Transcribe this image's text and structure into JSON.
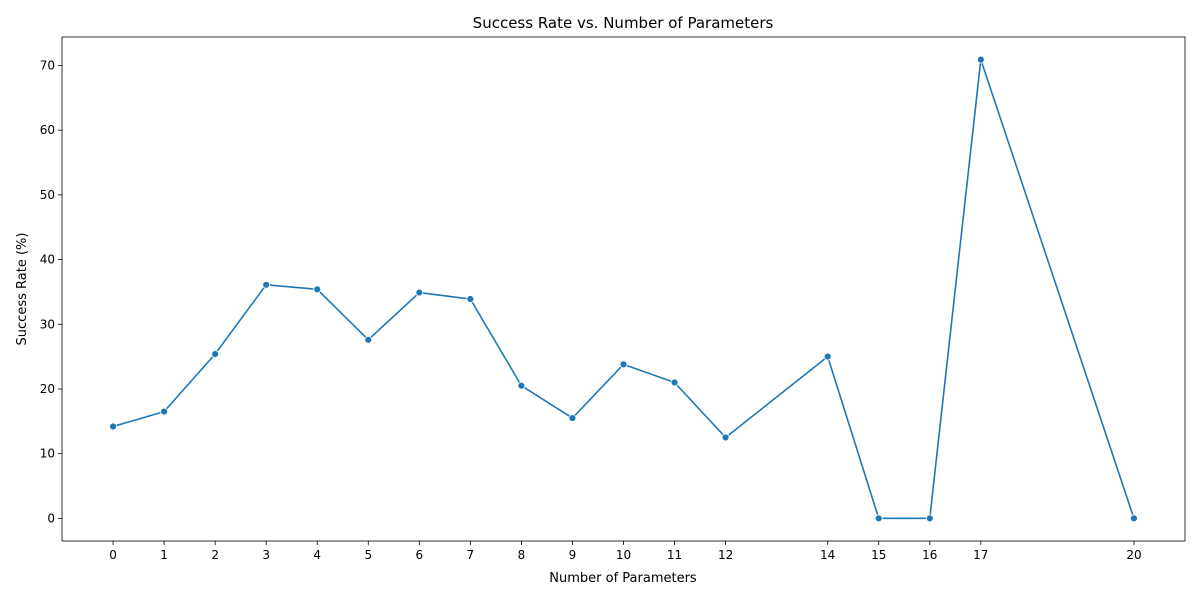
{
  "chart_data": {
    "type": "line",
    "title": "Success Rate vs. Number of Parameters",
    "xlabel": "Number of Parameters",
    "ylabel": "Success Rate (%)",
    "x": [
      0,
      1,
      2,
      3,
      4,
      5,
      6,
      7,
      8,
      9,
      10,
      11,
      12,
      14,
      15,
      16,
      17,
      20
    ],
    "series": [
      {
        "values": [
          14.2,
          16.5,
          25.4,
          36.1,
          35.4,
          27.6,
          34.9,
          33.9,
          20.5,
          15.5,
          23.8,
          21.0,
          12.5,
          25.0,
          0.0,
          0.0,
          70.9,
          0.0
        ],
        "color": "#1f77b4",
        "marker": "circle"
      }
    ],
    "xticks": [
      0,
      1,
      2,
      3,
      4,
      5,
      6,
      7,
      8,
      9,
      10,
      11,
      12,
      14,
      15,
      16,
      17,
      20
    ],
    "yticks": [
      0,
      10,
      20,
      30,
      40,
      50,
      60,
      70
    ],
    "xlim": [
      -1,
      21
    ],
    "ylim": [
      -3.5,
      74.4
    ],
    "grid": false,
    "legend": "none"
  }
}
